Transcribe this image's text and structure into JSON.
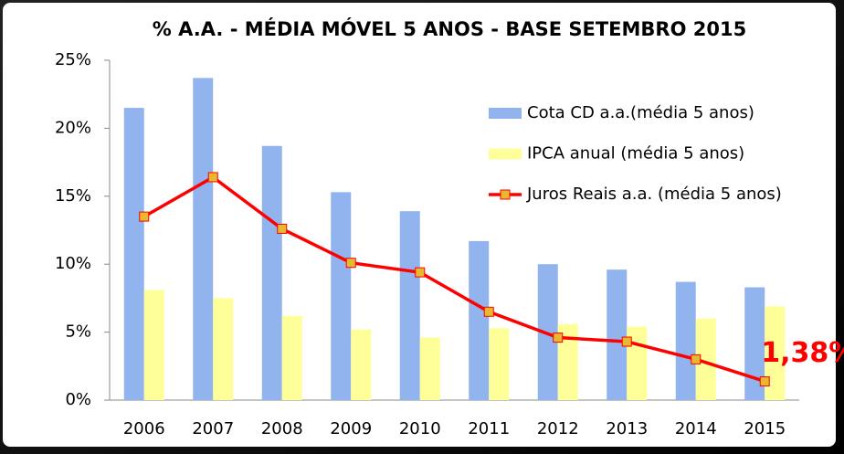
{
  "chart_data": {
    "type": "bar-line",
    "title": "% A.A. - MÉDIA MÓVEL 5 ANOS  - BASE SETEMBRO 2015",
    "categories": [
      "2006",
      "2007",
      "2008",
      "2009",
      "2010",
      "2011",
      "2012",
      "2013",
      "2014",
      "2015"
    ],
    "series": [
      {
        "name": "Cota CD a.a.(média 5 anos)",
        "type": "bar",
        "color": "#92b4ee",
        "values": [
          21.5,
          23.7,
          18.7,
          15.3,
          13.9,
          11.7,
          10.0,
          9.6,
          8.7,
          8.3
        ]
      },
      {
        "name": "IPCA anual (média 5 anos)",
        "type": "bar",
        "color": "#ffff99",
        "values": [
          8.1,
          7.5,
          6.2,
          5.2,
          4.6,
          5.3,
          5.6,
          5.4,
          6.0,
          6.9
        ]
      },
      {
        "name": "Juros Reais a.a. (média 5 anos)",
        "type": "line",
        "color": "#ff0000",
        "values": [
          13.5,
          16.4,
          12.6,
          10.1,
          9.4,
          6.5,
          4.6,
          4.3,
          3.0,
          1.38
        ],
        "value_labels": [
          null,
          null,
          null,
          null,
          null,
          null,
          null,
          null,
          null,
          "1,38%"
        ]
      }
    ],
    "ylim": [
      0,
      25
    ],
    "yticks": [
      {
        "value": 0,
        "label": "0%"
      },
      {
        "value": 5,
        "label": "5%"
      },
      {
        "value": 10,
        "label": "10%"
      },
      {
        "value": 15,
        "label": "15%"
      },
      {
        "value": 20,
        "label": "20%"
      },
      {
        "value": 25,
        "label": "25%"
      }
    ],
    "grid": false,
    "legend": "top-right"
  }
}
